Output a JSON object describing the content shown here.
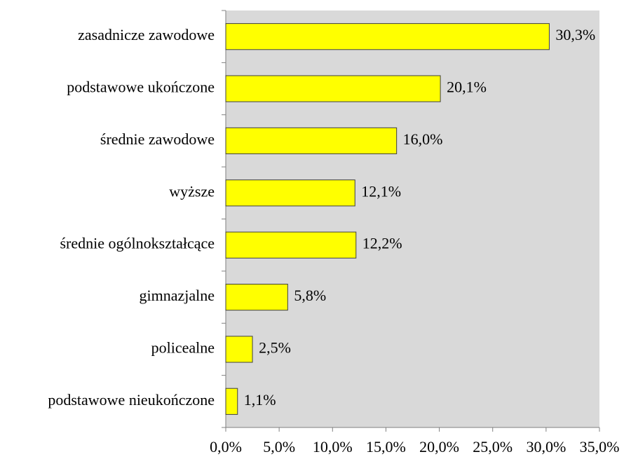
{
  "chart_data": {
    "type": "barh",
    "categories": [
      "zasadnicze zawodowe",
      "podstawowe ukończone",
      "średnie zawodowe",
      "wyższe",
      "średnie ogólnokształcące",
      "gimnazjalne",
      "policealne",
      "podstawowe nieukończone"
    ],
    "values": [
      30.3,
      20.1,
      16.0,
      12.1,
      12.2,
      5.8,
      2.5,
      1.1
    ],
    "value_labels": [
      "30,3%",
      "20,1%",
      "16,0%",
      "12,1%",
      "12,2%",
      "5,8%",
      "2,5%",
      "1,1%"
    ],
    "color": "#ffff00",
    "xlim": [
      0,
      35
    ],
    "xticks": [
      {
        "value": 0,
        "label": "0,0%"
      },
      {
        "value": 5,
        "label": "5,0%"
      },
      {
        "value": 10,
        "label": "10,0%"
      },
      {
        "value": 15,
        "label": "15,0%"
      },
      {
        "value": 20,
        "label": "20,0%"
      },
      {
        "value": 25,
        "label": "25,0%"
      },
      {
        "value": 30,
        "label": "30,0%"
      },
      {
        "value": 35,
        "label": "35,0%"
      }
    ]
  }
}
